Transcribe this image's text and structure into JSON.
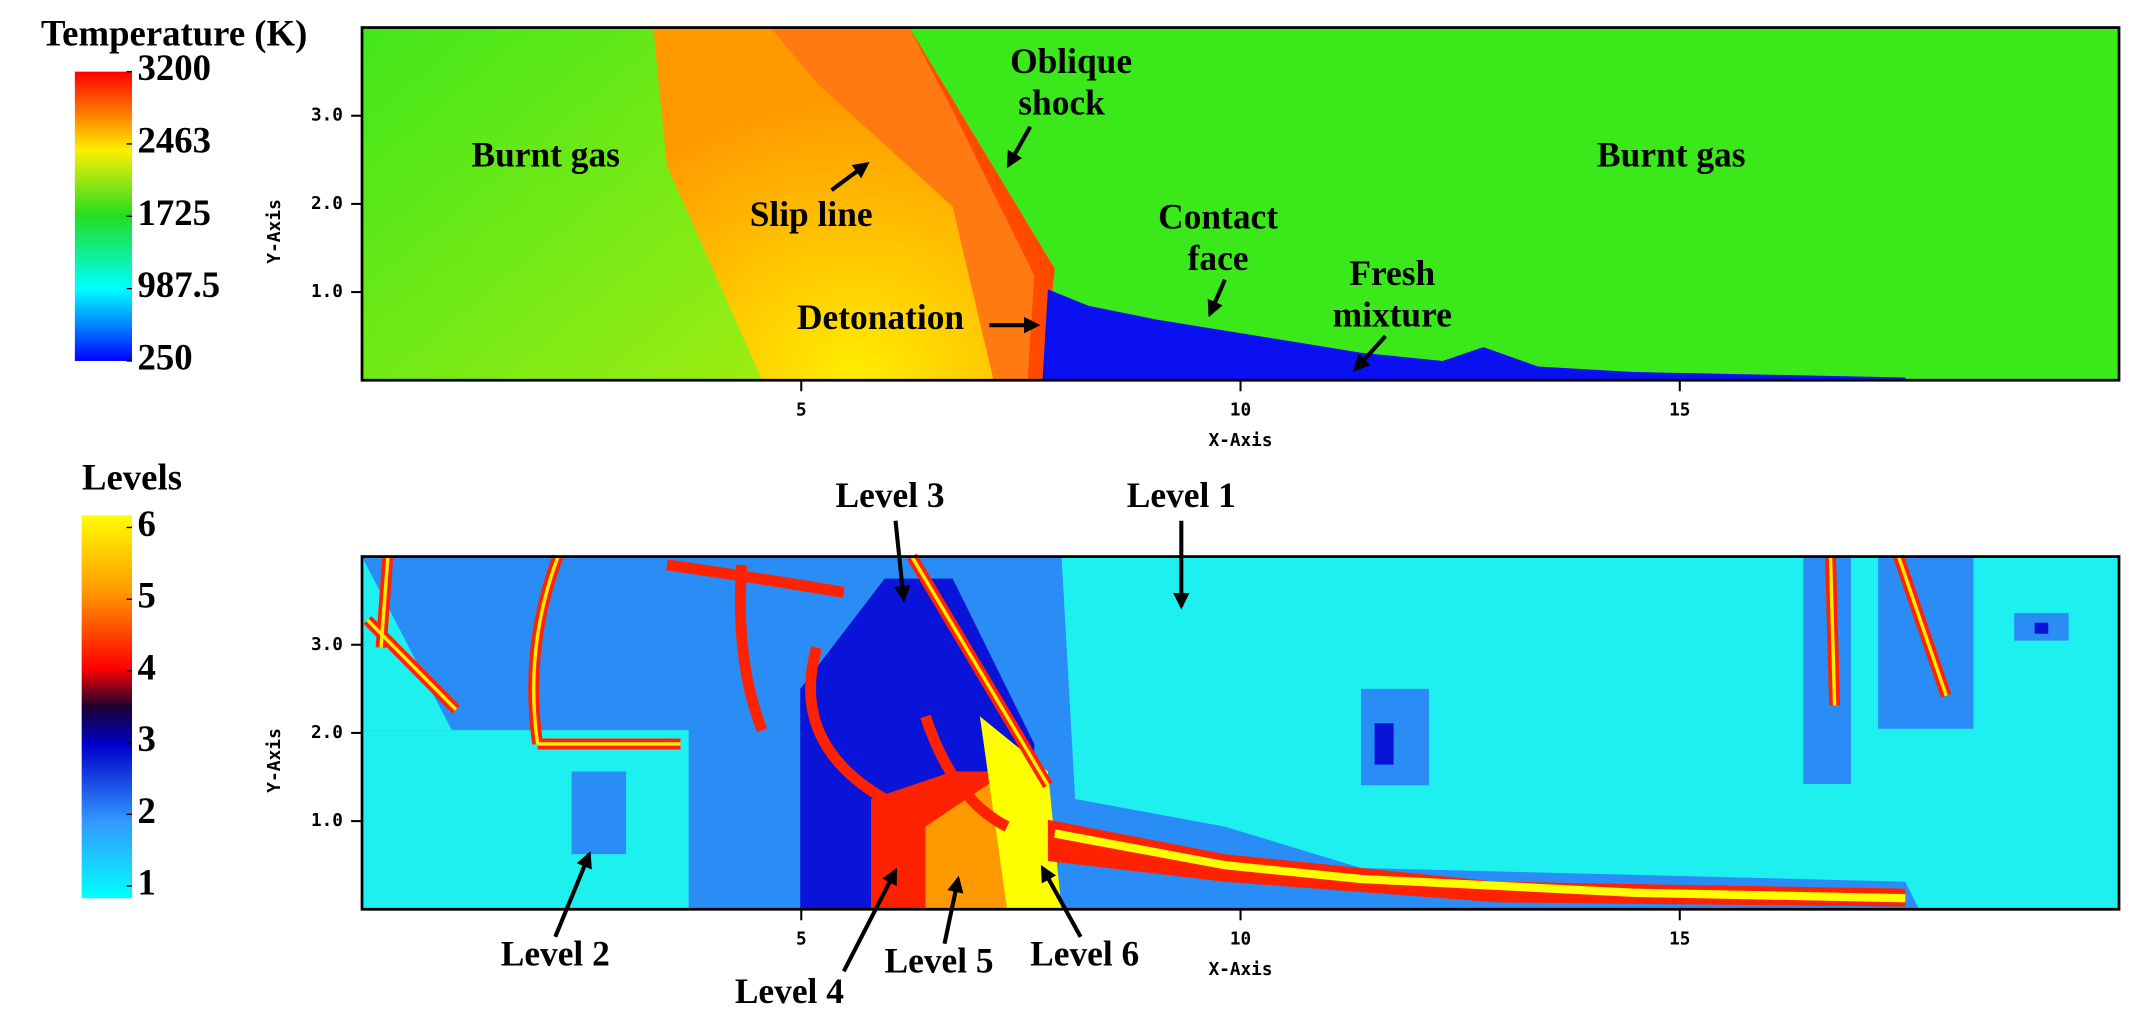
{
  "temperature_panel": {
    "colorbar": {
      "title": "Temperature (K)",
      "range": [
        250,
        3200
      ],
      "ticks": [
        3200,
        2463,
        1725,
        987.5,
        250
      ]
    },
    "x_axis": {
      "label": "X-Axis",
      "range": [
        0,
        20
      ],
      "ticks": [
        5,
        10,
        15
      ]
    },
    "y_axis": {
      "label": "Y-Axis",
      "range": [
        0,
        4
      ],
      "ticks": [
        {
          "value": 1,
          "label": "1.0"
        },
        {
          "value": 2,
          "label": "2.0"
        },
        {
          "value": 3,
          "label": "3.0"
        }
      ]
    },
    "annotations": [
      [
        "Burnt gas"
      ],
      [
        "Oblique",
        "shock"
      ],
      [
        "Slip line"
      ],
      [
        "Contact",
        "face"
      ],
      [
        "Fresh",
        "mixture"
      ],
      [
        "Detonation"
      ],
      [
        "Burnt gas"
      ]
    ]
  },
  "levels_panel": {
    "colorbar": {
      "title": "Levels",
      "range": [
        0.83,
        6.17
      ],
      "ticks": [
        6,
        5,
        4,
        3,
        2,
        1
      ]
    },
    "x_axis": {
      "label": "X-Axis",
      "range": [
        0,
        20
      ],
      "ticks": [
        5,
        10,
        15
      ]
    },
    "y_axis": {
      "label": "Y-Axis",
      "range": [
        0,
        4
      ],
      "ticks": [
        {
          "value": 1,
          "label": "1.0"
        },
        {
          "value": 2,
          "label": "2.0"
        },
        {
          "value": 3,
          "label": "3.0"
        }
      ]
    },
    "annotations": [
      [
        "Level 3"
      ],
      [
        "Level 1"
      ],
      [
        "Level 2"
      ],
      [
        "Level 4"
      ],
      [
        "Level 5"
      ],
      [
        "Level 6"
      ]
    ]
  }
}
